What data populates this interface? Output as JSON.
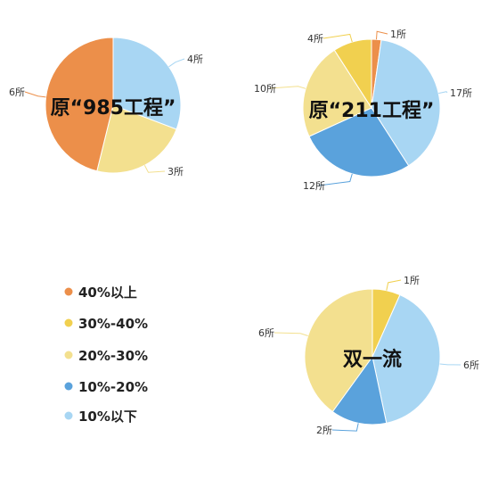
{
  "colors": {
    "40%以上": "#ec8f4a",
    "30%-40%": "#f1d04f",
    "20%-30%": "#f3e08f",
    "10%-20%": "#5aa2dc",
    "10%以下": "#a8d6f3"
  },
  "legend": {
    "items": [
      "40%以上",
      "30%-40%",
      "20%-30%",
      "10%-20%",
      "10%以下"
    ]
  },
  "chart_data": [
    {
      "type": "pie",
      "title": "原“985工程”",
      "slices": [
        {
          "category": "10%以下",
          "value": 4,
          "label": "4所"
        },
        {
          "category": "20%-30%",
          "value": 3,
          "label": "3所"
        },
        {
          "category": "40%以上",
          "value": 6,
          "label": "6所"
        }
      ]
    },
    {
      "type": "pie",
      "title": "原“211工程”",
      "slices": [
        {
          "category": "40%以上",
          "value": 1,
          "label": "1所"
        },
        {
          "category": "10%以下",
          "value": 17,
          "label": "17所"
        },
        {
          "category": "10%-20%",
          "value": 12,
          "label": "12所"
        },
        {
          "category": "20%-30%",
          "value": 10,
          "label": "10所"
        },
        {
          "category": "30%-40%",
          "value": 4,
          "label": "4所"
        }
      ]
    },
    {
      "type": "pie",
      "title": "双一流",
      "slices": [
        {
          "category": "30%-40%",
          "value": 1,
          "label": "1所"
        },
        {
          "category": "10%以下",
          "value": 6,
          "label": "6所"
        },
        {
          "category": "10%-20%",
          "value": 2,
          "label": "2所"
        },
        {
          "category": "20%-30%",
          "value": 6,
          "label": "6所"
        }
      ]
    }
  ]
}
